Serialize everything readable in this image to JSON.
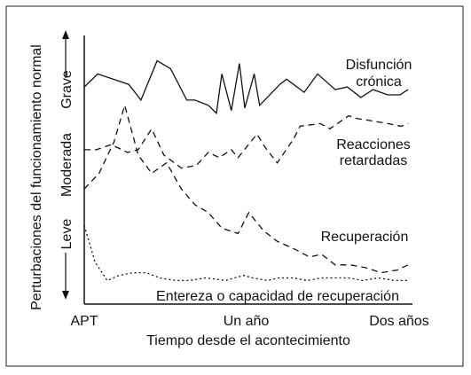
{
  "chart_data": {
    "type": "line",
    "title": "",
    "xlabel": "Tiempo desde el acontecimiento",
    "ylabel": "Perturbaciones del funcionamiento normal",
    "x_ticks": [
      {
        "label": "APT",
        "value": 0
      },
      {
        "label": "Un año",
        "value": 12
      },
      {
        "label": "Dos años",
        "value": 24
      }
    ],
    "y_levels": [
      "Leve",
      "Moderada",
      "Grave"
    ],
    "xlim": [
      0,
      24
    ],
    "ylim": [
      0,
      10
    ],
    "grid": false,
    "series": [
      {
        "name": "Disfunción crónica",
        "label_lines": [
          "Disfunción",
          "crónica"
        ],
        "style": "solid",
        "points": [
          [
            0,
            8.3
          ],
          [
            1,
            8.8
          ],
          [
            3.3,
            8.4
          ],
          [
            4.2,
            7.8
          ],
          [
            5.4,
            9.3
          ],
          [
            6.4,
            9.0
          ],
          [
            7.6,
            7.8
          ],
          [
            8.2,
            7.8
          ],
          [
            9.2,
            7.6
          ],
          [
            9.8,
            7.3
          ],
          [
            10.2,
            8.8
          ],
          [
            10.9,
            7.4
          ],
          [
            11.5,
            9.2
          ],
          [
            11.9,
            7.5
          ],
          [
            12.6,
            8.8
          ],
          [
            13,
            7.6
          ],
          [
            14.5,
            8.4
          ],
          [
            15,
            8.6
          ],
          [
            16.3,
            8.1
          ],
          [
            17.3,
            8.8
          ],
          [
            18.6,
            8.2
          ],
          [
            19.5,
            8.3
          ],
          [
            20.5,
            7.9
          ],
          [
            21.4,
            8.2
          ],
          [
            22.5,
            8.0
          ],
          [
            23.4,
            8.0
          ],
          [
            24,
            8.2
          ]
        ]
      },
      {
        "name": "Reacciones retardadas",
        "label_lines": [
          "Reacciones",
          "retardadas"
        ],
        "style": "dashed",
        "points": [
          [
            0,
            5.9
          ],
          [
            0.9,
            5.9
          ],
          [
            2,
            6.1
          ],
          [
            3.2,
            5.8
          ],
          [
            4,
            5.9
          ],
          [
            5,
            6.7
          ],
          [
            5.9,
            5.7
          ],
          [
            7.2,
            5.2
          ],
          [
            8.3,
            5.3
          ],
          [
            9.2,
            5.8
          ],
          [
            10,
            5.6
          ],
          [
            10.9,
            5.9
          ],
          [
            11.4,
            5.6
          ],
          [
            12.8,
            6.5
          ],
          [
            13.4,
            6.0
          ],
          [
            14.3,
            5.4
          ],
          [
            15.5,
            6.3
          ],
          [
            16,
            6.8
          ],
          [
            17.5,
            6.9
          ],
          [
            18.2,
            6.7
          ],
          [
            19.6,
            7.2
          ],
          [
            20.2,
            7.1
          ],
          [
            21.4,
            7.0
          ],
          [
            22.5,
            6.9
          ],
          [
            23.5,
            6.8
          ],
          [
            24,
            6.9
          ]
        ]
      },
      {
        "name": "Recuperación",
        "label_lines": [
          "Recuperación"
        ],
        "style": "dashed",
        "points": [
          [
            0,
            4.4
          ],
          [
            1.1,
            5.0
          ],
          [
            2.2,
            6.2
          ],
          [
            3.0,
            7.6
          ],
          [
            4.0,
            5.7
          ],
          [
            5.0,
            5.0
          ],
          [
            6.1,
            5.4
          ],
          [
            7.2,
            4.4
          ],
          [
            8.2,
            3.8
          ],
          [
            9.2,
            3.5
          ],
          [
            10.2,
            2.9
          ],
          [
            11.4,
            2.7
          ],
          [
            12.2,
            3.5
          ],
          [
            13.3,
            2.8
          ],
          [
            14.3,
            2.4
          ],
          [
            15.6,
            2.1
          ],
          [
            16.7,
            1.8
          ],
          [
            17.6,
            1.9
          ],
          [
            18.6,
            1.5
          ],
          [
            19.7,
            1.5
          ],
          [
            20.8,
            1.4
          ],
          [
            22,
            1.2
          ],
          [
            23.2,
            1.3
          ],
          [
            24,
            1.5
          ]
        ]
      },
      {
        "name": "Entereza o capacidad de recuperación",
        "label_lines": [
          "Entereza o capacidad de recuperación"
        ],
        "style": "dotted",
        "points": [
          [
            0,
            3.0
          ],
          [
            0.8,
            1.6
          ],
          [
            1.7,
            0.9
          ],
          [
            2.6,
            1.1
          ],
          [
            3.6,
            1.2
          ],
          [
            4.6,
            1.2
          ],
          [
            5.6,
            1.0
          ],
          [
            6.8,
            0.9
          ],
          [
            7.8,
            0.9
          ],
          [
            9,
            1.0
          ],
          [
            10.5,
            0.9
          ],
          [
            11.8,
            1.1
          ],
          [
            12.5,
            1.0
          ],
          [
            13.6,
            0.9
          ],
          [
            14.4,
            1.0
          ],
          [
            15.5,
            1.0
          ],
          [
            16.5,
            0.9
          ],
          [
            17.6,
            1.0
          ],
          [
            18.6,
            1.0
          ],
          [
            19.6,
            1.0
          ],
          [
            20.6,
            0.9
          ],
          [
            21.8,
            1.0
          ],
          [
            23,
            0.9
          ],
          [
            24,
            0.9
          ]
        ]
      }
    ]
  }
}
